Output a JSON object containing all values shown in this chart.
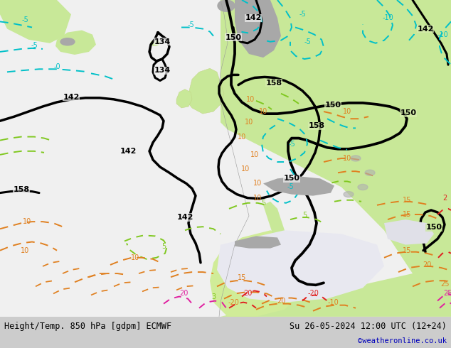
{
  "title_left": "Height/Temp. 850 hPa [gdpm] ECMWF",
  "title_right": "Su 26-05-2024 12:00 UTC (12+24)",
  "credit": "©weatheronline.co.uk",
  "credit_color": "#0000bb",
  "footer_bg": "#cccccc",
  "fig_width": 6.34,
  "fig_height": 4.9,
  "dpi": 100,
  "bg_ocean": "#f0f0f0",
  "bg_land_light": "#d8edb0",
  "bg_land_green": "#c0e090",
  "bg_gray": "#b0b0b0",
  "colors": {
    "black_contour": "#000000",
    "cyan_temp": "#00c0c8",
    "green_temp": "#80c820",
    "orange_temp": "#e08020",
    "red_temp": "#e02020",
    "pink_temp": "#e020a0"
  },
  "contour_lw": 2.2,
  "temp_lw": 1.4
}
